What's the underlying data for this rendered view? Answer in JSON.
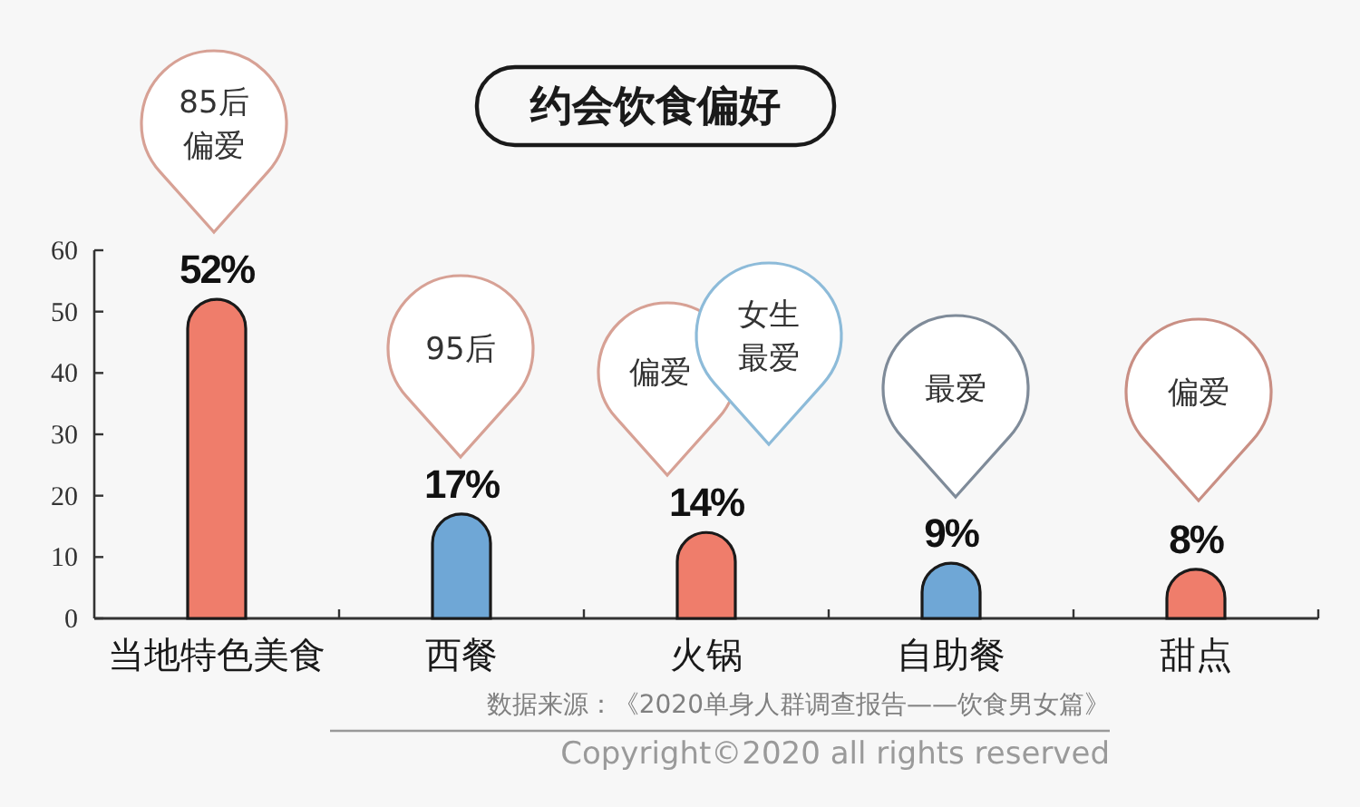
{
  "chart_data": {
    "type": "bar",
    "title": "约会饮食偏好",
    "categories": [
      "当地特色美食",
      "西餐",
      "火锅",
      "自助餐",
      "甜点"
    ],
    "values": [
      52,
      17,
      14,
      9,
      8
    ],
    "colors": [
      "#ef7d6b",
      "#6fa7d6",
      "#ef7d6b",
      "#6fa7d6",
      "#ef7d6b"
    ],
    "value_labels": [
      "52%",
      "17%",
      "14%",
      "9%",
      "8%"
    ],
    "ylim": [
      0,
      60
    ],
    "yticks": [
      0,
      10,
      20,
      30,
      40,
      50,
      60
    ],
    "annotations": [
      "85后偏爱",
      "95后",
      "偏爱",
      "女生最爱",
      "最爱",
      "偏爱",
      "数据来源：《2020单身人群调查报告——饮食男女篇》",
      "Copyright©2020 all rights reserved"
    ]
  }
}
